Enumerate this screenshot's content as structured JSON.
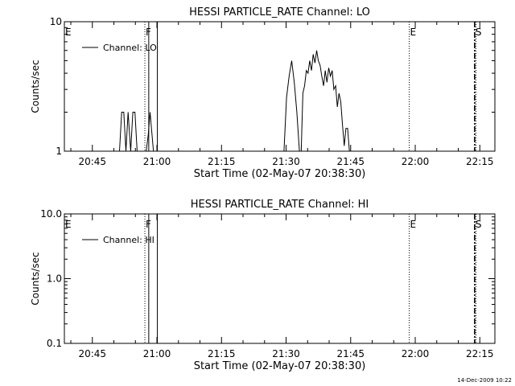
{
  "chart_data": [
    {
      "type": "line",
      "title": "HESSI PARTICLE_RATE Channel: LO",
      "xlabel": "Start Time (02-May-07 20:38:30)",
      "ylabel": "Counts/sec",
      "x_unit": "minutes after 20:38:30",
      "xlim": [
        0,
        100
      ],
      "ylim": [
        1,
        10
      ],
      "yscale": "log",
      "xticks": [
        {
          "label": "20:45",
          "value": 6.5
        },
        {
          "label": "21:00",
          "value": 21.5
        },
        {
          "label": "21:15",
          "value": 36.5
        },
        {
          "label": "21:30",
          "value": 51.5
        },
        {
          "label": "21:45",
          "value": 66.5
        },
        {
          "label": "22:00",
          "value": 81.5
        },
        {
          "label": "22:15",
          "value": 96.5
        }
      ],
      "yticks": [
        {
          "label": "1",
          "value": 1
        },
        {
          "label": "10",
          "value": 10
        }
      ],
      "legend": {
        "label": "Channel: LO",
        "position": "top-left"
      },
      "grid": false,
      "series": [
        {
          "name": "Channel: LO",
          "x": [
            0,
            12.8,
            13.3,
            13.8,
            14.3,
            14.8,
            15.4,
            15.9,
            16.4,
            16.9,
            17.4,
            18.0,
            19.0,
            19.5,
            19.9,
            20.7,
            21.1,
            21.5,
            21.9,
            22.3,
            22.7,
            51.0,
            51.6,
            52.2,
            52.8,
            53.4,
            54.0,
            54.6,
            55.0,
            55.4,
            55.8,
            56.2,
            56.6,
            57.0,
            57.4,
            57.8,
            58.2,
            58.6,
            59.0,
            59.4,
            59.8,
            60.2,
            60.6,
            61.0,
            61.4,
            61.8,
            62.2,
            62.6,
            63.0,
            63.4,
            63.8,
            64.2,
            64.6,
            65.0,
            65.4,
            65.8,
            66.2,
            100
          ],
          "y": [
            1,
            1,
            2,
            2,
            1,
            2,
            1,
            2,
            2,
            1,
            1,
            1,
            1,
            1.35,
            2,
            1,
            1,
            1,
            1,
            1,
            1,
            1,
            2.6,
            3.8,
            5.0,
            3.4,
            2.0,
            1,
            1,
            2.8,
            3.2,
            4.2,
            4.0,
            5.0,
            4.2,
            5.6,
            4.8,
            6.0,
            5.0,
            4.6,
            3.8,
            3.2,
            4.2,
            3.4,
            4.4,
            3.8,
            4.2,
            3.0,
            3.2,
            2.2,
            2.8,
            2.4,
            1.6,
            1.1,
            1.5,
            1.5,
            1,
            1
          ]
        }
      ],
      "annotations": [
        {
          "label": "E",
          "x": 0,
          "style": "dotted"
        },
        {
          "label": "F",
          "x": 18.7,
          "style": "dotted"
        },
        {
          "label": "",
          "x": 19.6,
          "style": "solid"
        },
        {
          "label": "",
          "x": 21.6,
          "style": "solid"
        },
        {
          "label": "E",
          "x": 80.1,
          "style": "dotted"
        },
        {
          "label": "S",
          "x": 95.3,
          "style": "dash-dot"
        },
        {
          "label": "",
          "x": 95.6,
          "style": "dotted"
        }
      ]
    },
    {
      "type": "line",
      "title": "HESSI PARTICLE_RATE Channel: HI",
      "xlabel": "Start Time (02-May-07 20:38:30)",
      "ylabel": "Counts/sec",
      "x_unit": "minutes after 20:38:30",
      "xlim": [
        0,
        100
      ],
      "ylim": [
        0.1,
        10
      ],
      "yscale": "log",
      "xticks": [
        {
          "label": "20:45",
          "value": 6.5
        },
        {
          "label": "21:00",
          "value": 21.5
        },
        {
          "label": "21:15",
          "value": 36.5
        },
        {
          "label": "21:30",
          "value": 51.5
        },
        {
          "label": "21:45",
          "value": 66.5
        },
        {
          "label": "22:00",
          "value": 81.5
        },
        {
          "label": "22:15",
          "value": 96.5
        }
      ],
      "yticks": [
        {
          "label": "0.1",
          "value": 0.1
        },
        {
          "label": "1.0",
          "value": 1
        },
        {
          "label": "10.0",
          "value": 10
        }
      ],
      "legend": {
        "label": "Channel: HI",
        "position": "top-left"
      },
      "grid": false,
      "series": [
        {
          "name": "Channel: HI",
          "x": [],
          "y": []
        }
      ],
      "annotations": [
        {
          "label": "E",
          "x": 0,
          "style": "dotted"
        },
        {
          "label": "F",
          "x": 18.7,
          "style": "dotted"
        },
        {
          "label": "",
          "x": 19.6,
          "style": "solid"
        },
        {
          "label": "",
          "x": 21.6,
          "style": "solid"
        },
        {
          "label": "E",
          "x": 80.1,
          "style": "dotted"
        },
        {
          "label": "S",
          "x": 95.3,
          "style": "dash-dot"
        },
        {
          "label": "",
          "x": 95.6,
          "style": "dotted"
        }
      ]
    }
  ],
  "footer": {
    "timestamp": "14-Dec-2009 10:22"
  }
}
